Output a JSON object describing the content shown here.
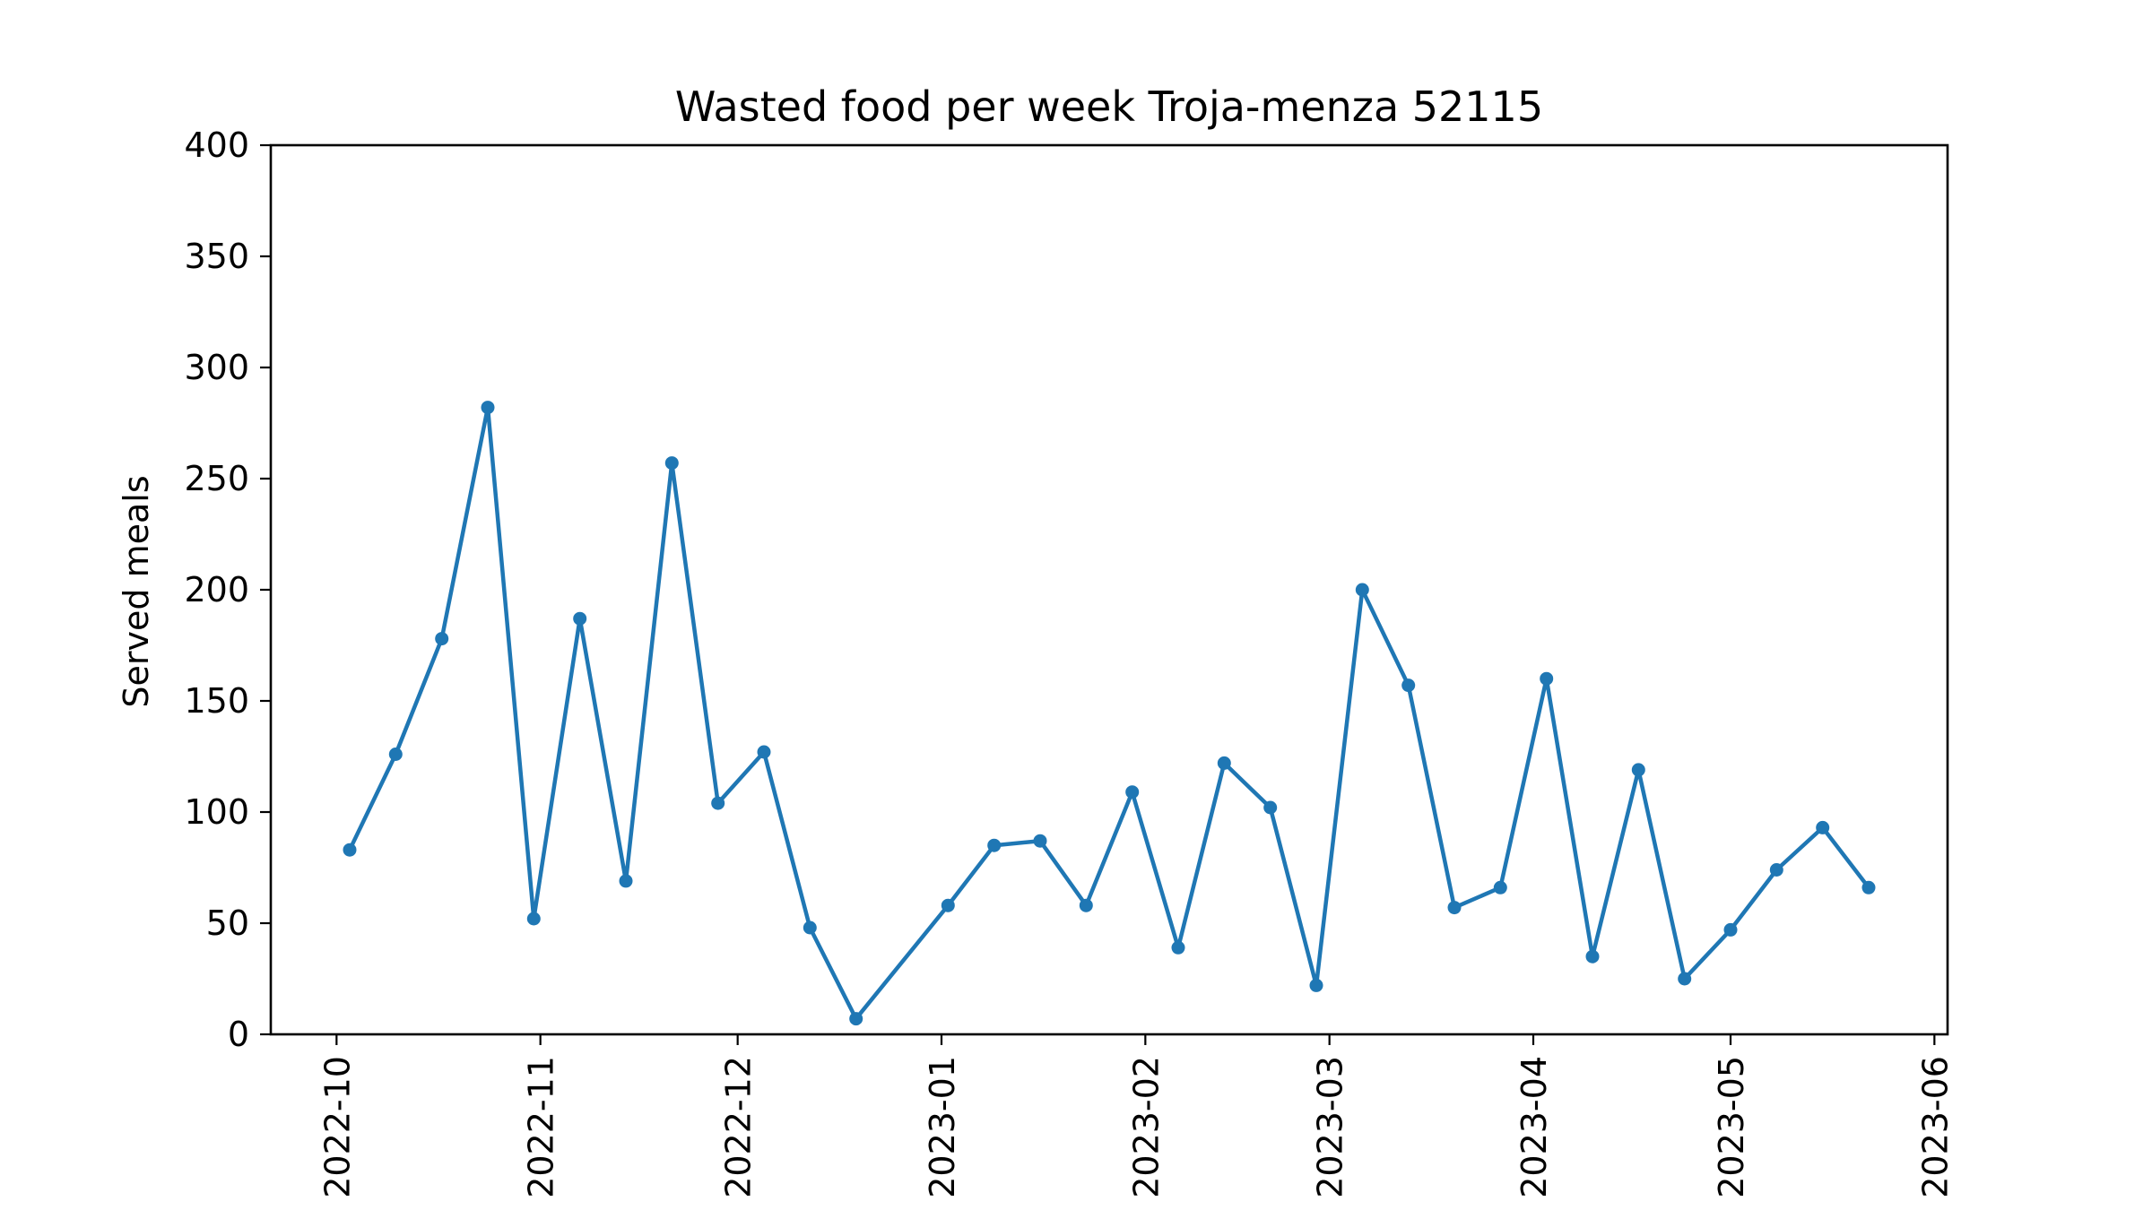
{
  "chart_data": {
    "type": "line",
    "title": "Wasted food per week Troja-menza 52115",
    "xlabel": "",
    "ylabel": "Served meals",
    "ylim": [
      0,
      400
    ],
    "yticks": [
      0,
      50,
      100,
      150,
      200,
      250,
      300,
      350,
      400
    ],
    "xlim": [
      "2022-09-21",
      "2023-06-03"
    ],
    "xticks": [
      "2022-10",
      "2022-11",
      "2022-12",
      "2023-01",
      "2023-02",
      "2023-03",
      "2023-04",
      "2023-05",
      "2023-06"
    ],
    "grid": false,
    "colors": {
      "line": "#1f77b4",
      "axes": "#000000",
      "background": "#ffffff"
    },
    "series": [
      {
        "points": [
          {
            "x": "2022-10-03",
            "y": 83
          },
          {
            "x": "2022-10-10",
            "y": 126
          },
          {
            "x": "2022-10-17",
            "y": 178
          },
          {
            "x": "2022-10-24",
            "y": 282
          },
          {
            "x": "2022-10-31",
            "y": 52
          },
          {
            "x": "2022-11-07",
            "y": 187
          },
          {
            "x": "2022-11-14",
            "y": 69
          },
          {
            "x": "2022-11-21",
            "y": 257
          },
          {
            "x": "2022-11-28",
            "y": 104
          },
          {
            "x": "2022-12-05",
            "y": 127
          },
          {
            "x": "2022-12-12",
            "y": 48
          },
          {
            "x": "2022-12-19",
            "y": 7
          },
          {
            "x": "2023-01-02",
            "y": 58
          },
          {
            "x": "2023-01-09",
            "y": 85
          },
          {
            "x": "2023-01-16",
            "y": 87
          },
          {
            "x": "2023-01-23",
            "y": 58
          },
          {
            "x": "2023-01-30",
            "y": 109
          },
          {
            "x": "2023-02-06",
            "y": 39
          },
          {
            "x": "2023-02-13",
            "y": 122
          },
          {
            "x": "2023-02-20",
            "y": 102
          },
          {
            "x": "2023-02-27",
            "y": 22
          },
          {
            "x": "2023-03-06",
            "y": 200
          },
          {
            "x": "2023-03-13",
            "y": 157
          },
          {
            "x": "2023-03-20",
            "y": 57
          },
          {
            "x": "2023-03-27",
            "y": 66
          },
          {
            "x": "2023-04-03",
            "y": 160
          },
          {
            "x": "2023-04-10",
            "y": 35
          },
          {
            "x": "2023-04-17",
            "y": 119
          },
          {
            "x": "2023-04-24",
            "y": 25
          },
          {
            "x": "2023-05-01",
            "y": 47
          },
          {
            "x": "2023-05-08",
            "y": 74
          },
          {
            "x": "2023-05-15",
            "y": 93
          },
          {
            "x": "2023-05-22",
            "y": 66
          }
        ]
      }
    ]
  }
}
